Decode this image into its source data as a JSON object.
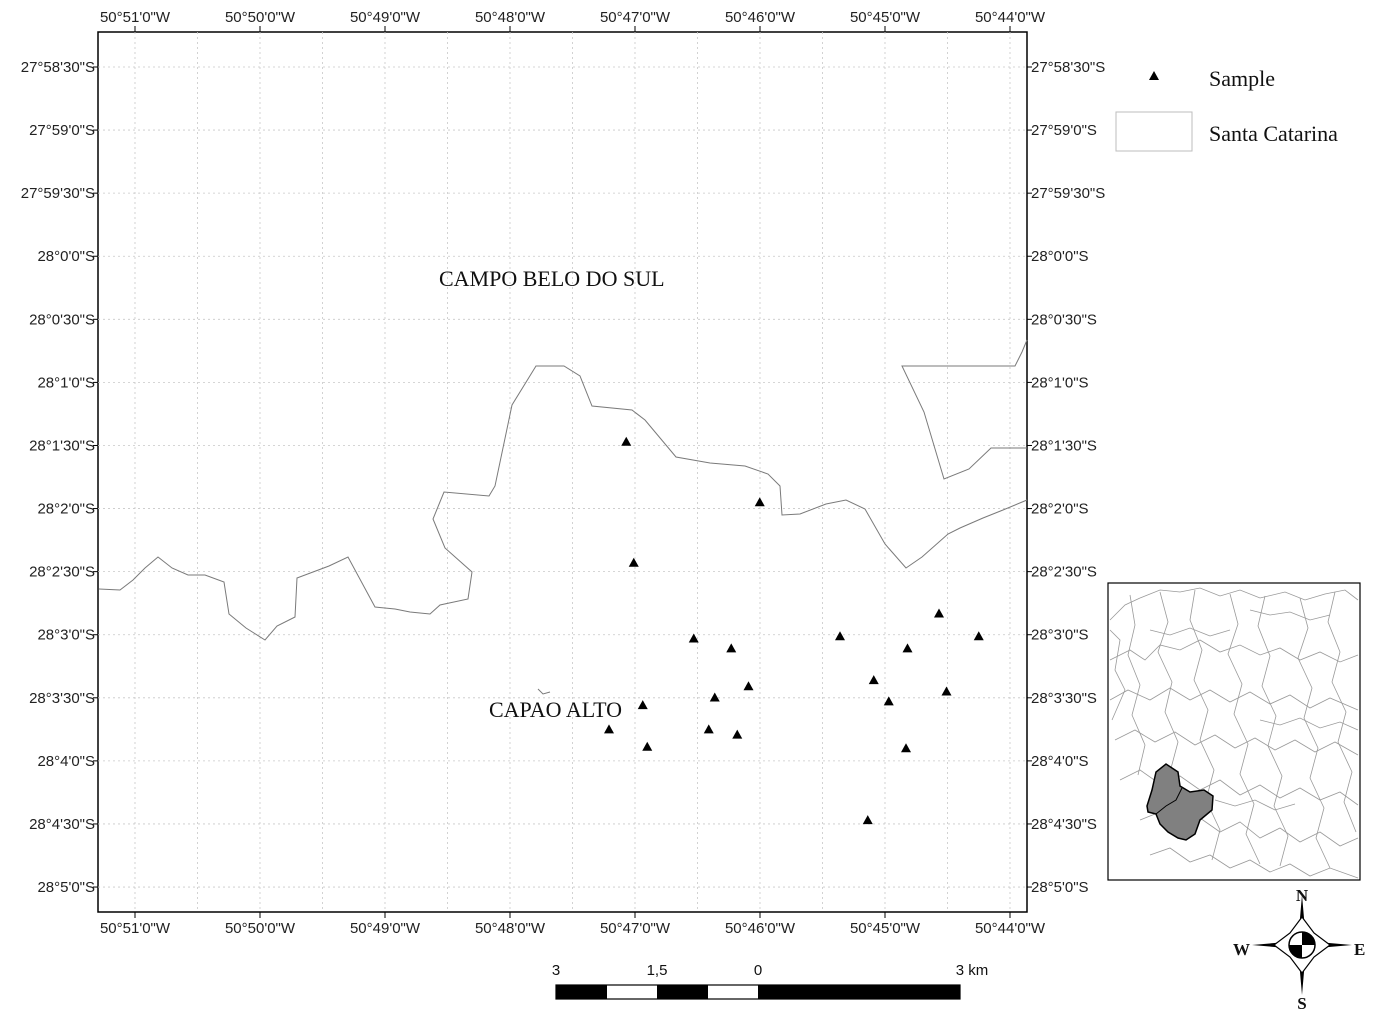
{
  "map": {
    "top_lon_labels": [
      "50°51'0\"W",
      "50°50'0\"W",
      "50°49'0\"W",
      "50°48'0\"W",
      "50°47'0\"W",
      "50°46'0\"W",
      "50°45'0\"W",
      "50°44'0\"W"
    ],
    "bottom_lon_labels": [
      "50°51'0\"W",
      "50°50'0\"W",
      "50°49'0\"W",
      "50°48'0\"W",
      "50°47'0\"W",
      "50°46'0\"W",
      "50°45'0\"W",
      "50°44'0\"W"
    ],
    "left_lat_labels": [
      "27°58'30\"S",
      "27°59'0\"S",
      "27°59'30\"S",
      "28°0'0\"S",
      "28°0'30\"S",
      "28°1'0\"S",
      "28°1'30\"S",
      "28°2'0\"S",
      "28°2'30\"S",
      "28°3'0\"S",
      "28°3'30\"S",
      "28°4'0\"S",
      "28°4'30\"S",
      "28°5'0\"S"
    ],
    "right_lat_labels": [
      "27°58'30\"S",
      "27°59'0\"S",
      "27°59'30\"S",
      "28°0'0\"S",
      "28°0'30\"S",
      "28°1'0\"S",
      "28°1'30\"S",
      "28°2'0\"S",
      "28°2'30\"S",
      "28°3'0\"S",
      "28°3'30\"S",
      "28°4'0\"S",
      "28°4'30\"S",
      "28°5'0\"S"
    ],
    "places": {
      "campo_belo": "CAMPO BELO DO SUL",
      "capao_alto": "CAPAO ALTO"
    },
    "samples": [
      {
        "lon": -50.7845,
        "lat": -28.0245
      },
      {
        "lon": -50.7667,
        "lat": -28.0325
      },
      {
        "lon": -50.7835,
        "lat": -28.0405
      },
      {
        "lon": -50.7428,
        "lat": -28.0472
      },
      {
        "lon": -50.7375,
        "lat": -28.0502
      },
      {
        "lon": -50.756,
        "lat": -28.0502
      },
      {
        "lon": -50.7755,
        "lat": -28.0505
      },
      {
        "lon": -50.7705,
        "lat": -28.0518
      },
      {
        "lon": -50.747,
        "lat": -28.0518
      },
      {
        "lon": -50.7515,
        "lat": -28.056
      },
      {
        "lon": -50.7682,
        "lat": -28.0568
      },
      {
        "lon": -50.7418,
        "lat": -28.0575
      },
      {
        "lon": -50.7727,
        "lat": -28.0583
      },
      {
        "lon": -50.7495,
        "lat": -28.0588
      },
      {
        "lon": -50.7823,
        "lat": -28.0593
      },
      {
        "lon": -50.7868,
        "lat": -28.0625
      },
      {
        "lon": -50.7735,
        "lat": -28.0625
      },
      {
        "lon": -50.7697,
        "lat": -28.0632
      },
      {
        "lon": -50.7817,
        "lat": -28.0648
      },
      {
        "lon": -50.7472,
        "lat": -28.065
      },
      {
        "lon": -50.7523,
        "lat": -28.0745
      }
    ]
  },
  "legend": {
    "sample_label": "Sample",
    "santa_catarina_label": "Santa Catarina"
  },
  "scale_bar": {
    "labels": [
      "3",
      "1,5",
      "0",
      "3 km"
    ]
  },
  "compass": {
    "north": "N",
    "south": "S",
    "east": "E",
    "west": "W"
  },
  "colors": {
    "highlight": "#808080",
    "boundary": "#7a7a7a",
    "grid": "#c8c8c8"
  }
}
